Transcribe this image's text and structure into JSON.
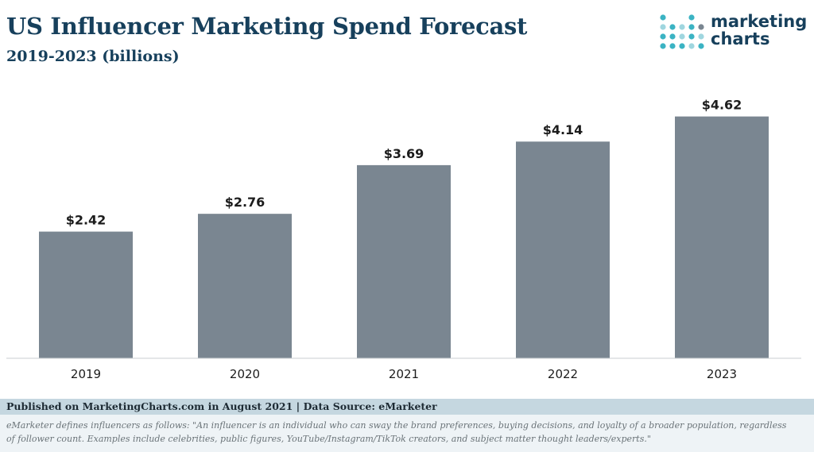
{
  "header": {
    "title": "US Influencer Marketing Spend Forecast",
    "subtitle": "2019-2023 (billions)"
  },
  "logo": {
    "line1": "marketing",
    "line2": "charts",
    "colors": {
      "teal": "#3bb3c3",
      "light": "#9fd6df",
      "gray": "#7a8691",
      "navy": "#17405c"
    }
  },
  "chart_data": {
    "type": "bar",
    "categories": [
      "2019",
      "2020",
      "2021",
      "2022",
      "2023"
    ],
    "values": [
      2.42,
      2.76,
      3.69,
      4.14,
      4.62
    ],
    "labels": [
      "$2.42",
      "$2.76",
      "$3.69",
      "$4.14",
      "$4.62"
    ],
    "ylim": [
      0,
      5.1
    ],
    "grid": false,
    "bar_color": "#7a8691"
  },
  "footer": {
    "published": "Published on MarketingCharts.com in August 2021 | Data Source: eMarketer",
    "note": "eMarketer defines influencers as follows: \"An influencer is an individual who can sway the brand preferences, buying decisions, and loyalty of a broader population, regardless of follower count. Examples include celebrities, public figures, YouTube/Instagram/TikTok creators, and subject matter thought leaders/experts.\""
  }
}
